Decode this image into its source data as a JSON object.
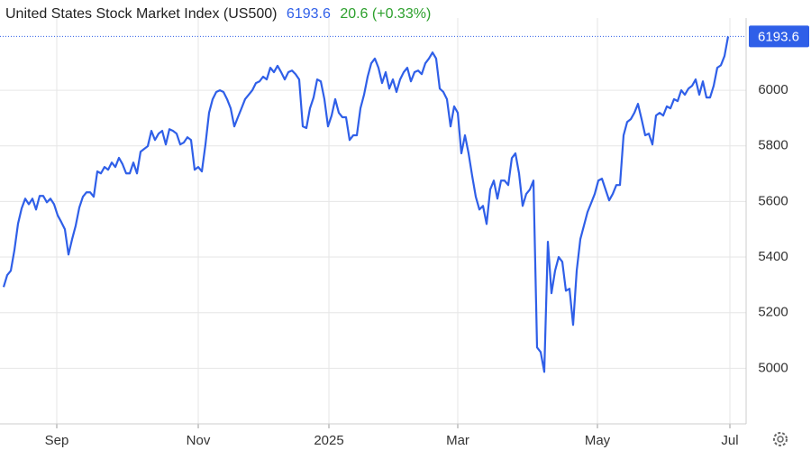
{
  "chart_data": {
    "type": "line",
    "title": "United States Stock Market Index (US500)",
    "change": "20.6 (+0.33%)",
    "series": [
      {
        "name": "US500",
        "color": "#2f5fe8",
        "values": [
          5292,
          5335,
          5351,
          5425,
          5520,
          5575,
          5610,
          5590,
          5610,
          5571,
          5620,
          5620,
          5597,
          5610,
          5590,
          5550,
          5526,
          5500,
          5409,
          5464,
          5513,
          5578,
          5617,
          5633,
          5633,
          5617,
          5708,
          5701,
          5724,
          5714,
          5740,
          5724,
          5757,
          5734,
          5701,
          5701,
          5740,
          5701,
          5779,
          5789,
          5799,
          5854,
          5821,
          5844,
          5854,
          5805,
          5860,
          5854,
          5844,
          5805,
          5812,
          5831,
          5821,
          5714,
          5724,
          5708,
          5805,
          5919,
          5968,
          5994,
          6000,
          5994,
          5968,
          5935,
          5870,
          5903,
          5935,
          5968,
          5984,
          6000,
          6026,
          6032,
          6049,
          6039,
          6081,
          6065,
          6088,
          6065,
          6039,
          6065,
          6071,
          6058,
          6039,
          5870,
          5864,
          5935,
          5974,
          6039,
          6032,
          5968,
          5870,
          5909,
          5968,
          5919,
          5903,
          5903,
          5821,
          5838,
          5838,
          5935,
          5984,
          6049,
          6097,
          6114,
          6081,
          6026,
          6065,
          6006,
          6039,
          5994,
          6039,
          6065,
          6081,
          6032,
          6065,
          6071,
          6058,
          6097,
          6114,
          6136,
          6114,
          6006,
          5994,
          5968,
          5870,
          5942,
          5919,
          5773,
          5838,
          5773,
          5692,
          5617,
          5571,
          5584,
          5519,
          5643,
          5675,
          5610,
          5675,
          5675,
          5659,
          5756,
          5773,
          5701,
          5584,
          5627,
          5643,
          5675,
          5075,
          5058,
          4987,
          5455,
          5270,
          5351,
          5400,
          5383,
          5279,
          5286,
          5156,
          5351,
          5464,
          5513,
          5562,
          5594,
          5627,
          5675,
          5682,
          5643,
          5604,
          5627,
          5659,
          5659,
          5838,
          5886,
          5896,
          5919,
          5951,
          5896,
          5838,
          5844,
          5805,
          5909,
          5919,
          5909,
          5942,
          5935,
          5968,
          5961,
          6000,
          5984,
          6006,
          6016,
          6039,
          5984,
          6032,
          5974,
          5974,
          6016,
          6081,
          6090,
          6123,
          6193.6
        ]
      }
    ],
    "xlim": [
      -1,
      206
    ],
    "xticks": [
      {
        "value": 14.75,
        "label": "Sep"
      },
      {
        "value": 54,
        "label": "Nov"
      },
      {
        "value": 90.25,
        "label": "2025"
      },
      {
        "value": 126,
        "label": "Mar"
      },
      {
        "value": 164.75,
        "label": "May"
      },
      {
        "value": 201.5,
        "label": "Jul"
      }
    ],
    "ylim": [
      4800,
      6230
    ],
    "yticks": [
      5000,
      5200,
      5400,
      5600,
      5800,
      6000
    ],
    "grid": true
  }
}
